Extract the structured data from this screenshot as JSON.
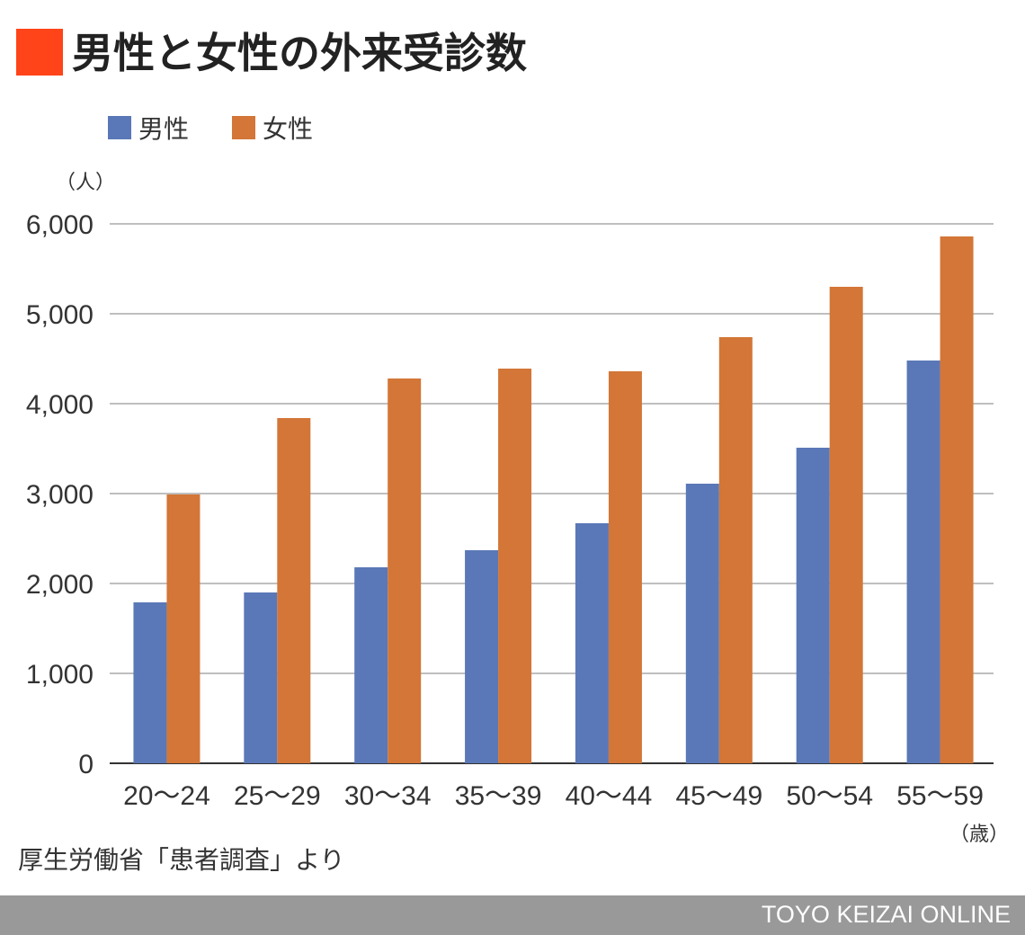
{
  "title": "男性と女性の外来受診数",
  "title_mark_color": "#FF4419",
  "legend": [
    {
      "label": "男性",
      "color": "#5A78B7"
    },
    {
      "label": "女性",
      "color": "#D37637"
    }
  ],
  "source": "厚生労働省「患者調査」より",
  "footer": "TOYO KEIZAI ONLINE",
  "chart_data": {
    "type": "bar",
    "title": "男性と女性の外来受診数",
    "y_unit": "（人）",
    "x_unit": "（歳）",
    "categories": [
      "20～24",
      "25～29",
      "30～34",
      "35～39",
      "40～44",
      "45～49",
      "50～54",
      "55～59"
    ],
    "series": [
      {
        "name": "男性",
        "color": "#5A78B7",
        "values": [
          1790,
          1900,
          2180,
          2370,
          2670,
          3110,
          3510,
          4480
        ]
      },
      {
        "name": "女性",
        "color": "#D37637",
        "values": [
          2990,
          3840,
          4280,
          4390,
          4360,
          4740,
          5300,
          5860
        ]
      }
    ],
    "ylim": [
      0,
      6000
    ],
    "yticks": [
      0,
      1000,
      2000,
      3000,
      4000,
      5000,
      6000
    ],
    "ytick_labels": [
      "0",
      "1,000",
      "2,000",
      "3,000",
      "4,000",
      "5,000",
      "6,000"
    ],
    "grid": true,
    "legend_position": "top-left"
  }
}
